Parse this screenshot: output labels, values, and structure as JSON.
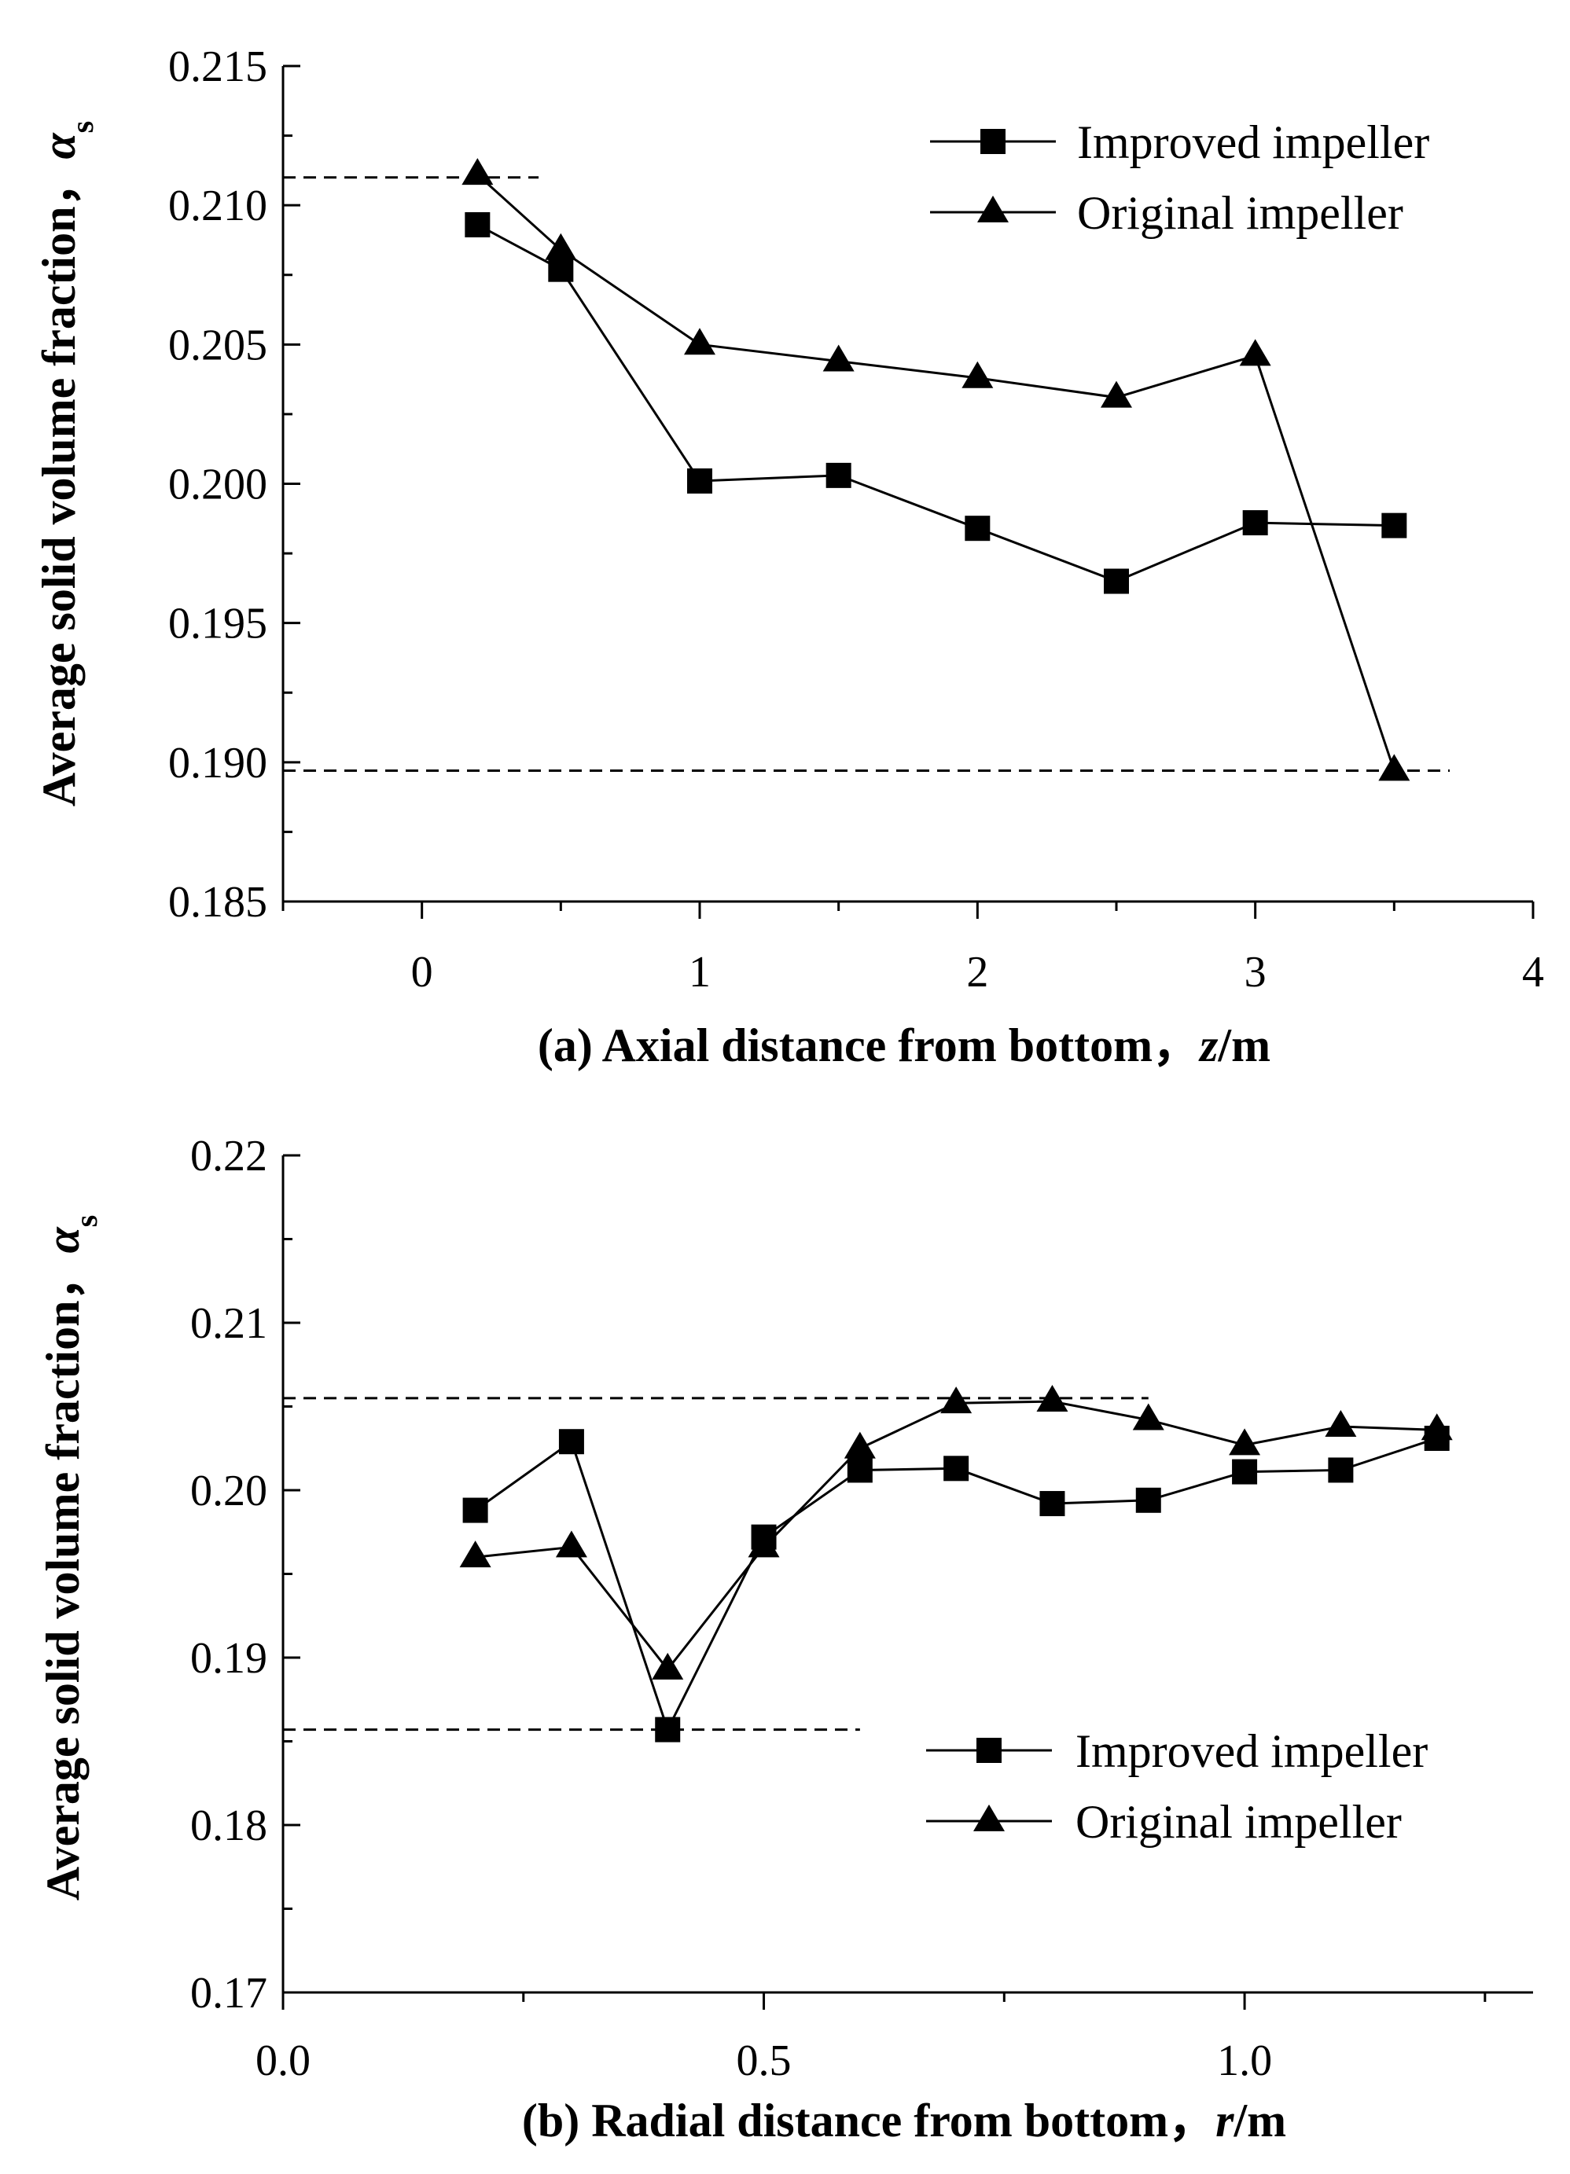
{
  "chart_data": [
    {
      "type": "line",
      "panel": "a",
      "title": "",
      "xlabel_prefix": "(a)  Axial distance from bottom，",
      "xlabel_var": "z",
      "xlabel_unit": "/m",
      "ylabel": "Average solid volume fraction，",
      "ylabel_symbol": "α",
      "ylabel_sub": "s",
      "xlim": [
        -0.5,
        4
      ],
      "ylim": [
        0.185,
        0.215
      ],
      "xticks": [
        0,
        1,
        2,
        3,
        4
      ],
      "xtick_labels": [
        "0",
        "1",
        "2",
        "3",
        "4"
      ],
      "yticks": [
        0.185,
        0.19,
        0.195,
        0.2,
        0.205,
        0.21,
        0.215
      ],
      "ytick_labels": [
        "0.185",
        "0.190",
        "0.195",
        "0.200",
        "0.205",
        "0.210",
        "0.215"
      ],
      "x_minor_step": 0.5,
      "y_minor_step": 0.0025,
      "legend_position": "top-right",
      "series": [
        {
          "name": "Improved impeller",
          "marker": "square",
          "x": [
            0.2,
            0.5,
            1.0,
            1.5,
            2.0,
            2.5,
            3.0,
            3.5
          ],
          "values": [
            0.2093,
            0.2077,
            0.2001,
            0.2003,
            0.1984,
            0.1965,
            0.1986,
            0.1985
          ]
        },
        {
          "name": "Original impeller",
          "marker": "triangle",
          "x": [
            0.2,
            0.5,
            1.0,
            1.5,
            2.0,
            2.5,
            3.0,
            3.5
          ],
          "values": [
            0.2111,
            0.2084,
            0.205,
            0.2044,
            0.2038,
            0.2031,
            0.2046,
            0.1897
          ]
        }
      ],
      "reference_lines": [
        {
          "y": 0.211,
          "x_start": -0.5,
          "x_end": 0.42
        },
        {
          "y": 0.1897,
          "x_start": -0.5,
          "x_end": 3.7
        }
      ]
    },
    {
      "type": "line",
      "panel": "b",
      "title": "",
      "xlabel_prefix": "(b)  Radial distance from bottom，",
      "xlabel_var": "r",
      "xlabel_unit": "/m",
      "ylabel": "Average solid volume fraction，",
      "ylabel_symbol": "α",
      "ylabel_sub": "s",
      "xlim": [
        0.0,
        1.3
      ],
      "ylim": [
        0.17,
        0.22
      ],
      "xticks": [
        0.0,
        0.5,
        1.0
      ],
      "xtick_labels": [
        "0.0",
        "0.5",
        "1.0"
      ],
      "yticks": [
        0.17,
        0.18,
        0.19,
        0.2,
        0.21,
        0.22
      ],
      "ytick_labels": [
        "0.17",
        "0.18",
        "0.19",
        "0.20",
        "0.21",
        "0.22"
      ],
      "x_minor_step": 0.25,
      "y_minor_step": 0.005,
      "legend_position": "bottom-right",
      "series": [
        {
          "name": "Improved impeller",
          "marker": "square",
          "x": [
            0.2,
            0.3,
            0.4,
            0.5,
            0.6,
            0.7,
            0.8,
            0.9,
            1.0,
            1.1,
            1.2
          ],
          "values": [
            0.1988,
            0.2029,
            0.1857,
            0.1972,
            0.2012,
            0.2013,
            0.1992,
            0.1994,
            0.2011,
            0.2012,
            0.2031
          ]
        },
        {
          "name": "Original impeller",
          "marker": "triangle",
          "x": [
            0.2,
            0.3,
            0.4,
            0.5,
            0.6,
            0.7,
            0.8,
            0.9,
            1.0,
            1.1,
            1.2
          ],
          "values": [
            0.196,
            0.1966,
            0.1893,
            0.1966,
            0.2025,
            0.2052,
            0.2053,
            0.2042,
            0.2027,
            0.2038,
            0.2036
          ]
        }
      ],
      "reference_lines": [
        {
          "y": 0.2055,
          "x_start": 0.0,
          "x_end": 0.9
        },
        {
          "y": 0.1857,
          "x_start": 0.0,
          "x_end": 0.6
        }
      ]
    }
  ]
}
